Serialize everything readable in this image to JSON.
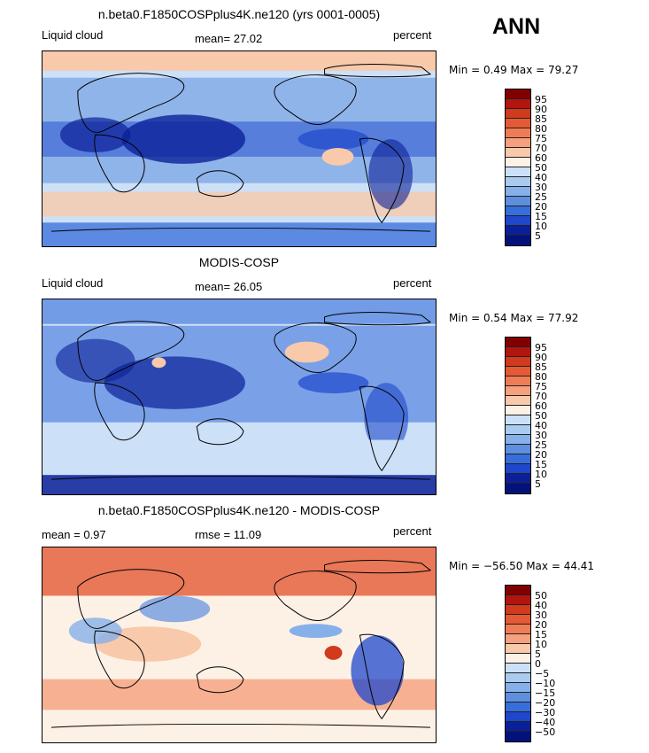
{
  "season": "ANN",
  "panels": [
    {
      "title": "n.beta0.F1850COSPplus4K.ne120 (yrs 0001-0005)",
      "left_label": "Liquid cloud",
      "center_label": "mean=  27.02",
      "units": "percent",
      "minmax": "Min =    0.49 Max =   79.27",
      "map_type": "field",
      "colorbar": [
        "95",
        "90",
        "85",
        "80",
        "75",
        "70",
        "60",
        "50",
        "40",
        "30",
        "25",
        "20",
        "15",
        "10",
        "5"
      ]
    },
    {
      "title": "MODIS-COSP",
      "left_label": "Liquid cloud",
      "center_label": "mean=  26.05",
      "units": "percent",
      "minmax": "Min =    0.54 Max =   77.92",
      "map_type": "field",
      "colorbar": [
        "95",
        "90",
        "85",
        "80",
        "75",
        "70",
        "60",
        "50",
        "40",
        "30",
        "25",
        "20",
        "15",
        "10",
        "5"
      ]
    },
    {
      "title": "n.beta0.F1850COSPplus4K.ne120 - MODIS-COSP",
      "left_label": "mean =    0.97",
      "center_label": "rmse =   11.09",
      "units": "percent",
      "minmax": "Min = −56.50 Max =   44.41",
      "map_type": "difference",
      "colorbar": [
        "50",
        "40",
        "30",
        "20",
        "15",
        "10",
        "5",
        "0",
        "−5",
        "−10",
        "−15",
        "−20",
        "−30",
        "−40",
        "−50"
      ]
    }
  ],
  "colors": {
    "scale": [
      "#800000",
      "#b2140f",
      "#d13a1c",
      "#e45a34",
      "#f07c56",
      "#f6a07d",
      "#f8c9aa",
      "#fdf1e6",
      "#cce0f7",
      "#aacbf0",
      "#86b0ea",
      "#5d8fde",
      "#376edb",
      "#1e47cc",
      "#0b2098",
      "#03127a"
    ]
  }
}
